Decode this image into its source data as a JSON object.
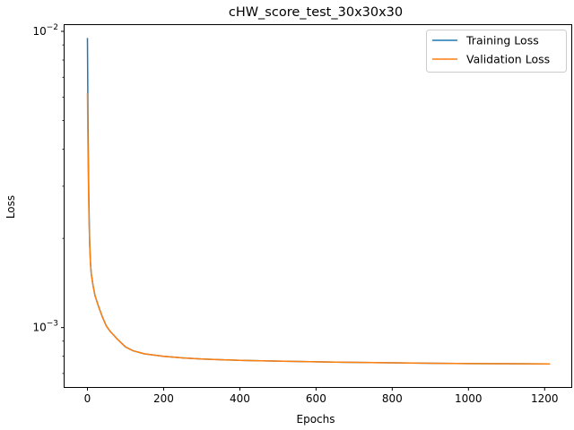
{
  "chart_data": {
    "type": "line",
    "title": "cHW_score_test_30x30x30",
    "xlabel": "Epochs",
    "ylabel": "Loss",
    "yscale": "log",
    "xlim": [
      -60,
      1270
    ],
    "ylim": [
      0.00063,
      0.0105
    ],
    "xticks": [
      0,
      200,
      400,
      600,
      800,
      1000,
      1200
    ],
    "xtick_labels": [
      "0",
      "200",
      "400",
      "600",
      "800",
      "1000",
      "1200"
    ],
    "yticks_major": [
      0.001,
      0.01
    ],
    "ytick_labels": [
      {
        "base": "10",
        "exp": "−3"
      },
      {
        "base": "10",
        "exp": "−2"
      }
    ],
    "yticks_minor": [
      0.0007,
      0.0008,
      0.0009,
      0.002,
      0.003,
      0.004,
      0.005,
      0.006,
      0.007,
      0.008,
      0.009
    ],
    "grid": false,
    "legend_position": "top-right",
    "series": [
      {
        "name": "Training Loss",
        "color": "#1f77b4",
        "x": [
          0,
          1,
          2,
          3,
          4,
          5,
          6,
          8,
          10,
          15,
          20,
          30,
          40,
          50,
          60,
          80,
          100,
          120,
          150,
          200,
          250,
          300,
          400,
          500,
          600,
          700,
          800,
          900,
          1000,
          1100,
          1214
        ],
        "y": [
          0.0095,
          0.0062,
          0.0042,
          0.0032,
          0.0026,
          0.0022,
          0.0019,
          0.00165,
          0.00152,
          0.00138,
          0.00128,
          0.00117,
          0.00108,
          0.00101,
          0.00097,
          0.00091,
          0.00086,
          0.000835,
          0.000815,
          0.0008,
          0.00079,
          0.000783,
          0.000775,
          0.00077,
          0.000766,
          0.000763,
          0.00076,
          0.000758,
          0.000756,
          0.000755,
          0.000754
        ]
      },
      {
        "name": "Validation Loss",
        "color": "#ff7f0e",
        "x": [
          0,
          1,
          2,
          3,
          4,
          5,
          6,
          8,
          10,
          15,
          20,
          30,
          40,
          50,
          60,
          80,
          100,
          120,
          150,
          200,
          250,
          300,
          400,
          500,
          600,
          700,
          800,
          900,
          1000,
          1100,
          1214
        ],
        "y": [
          0.0062,
          0.0046,
          0.0035,
          0.0029,
          0.0024,
          0.0021,
          0.0019,
          0.00165,
          0.00152,
          0.00138,
          0.00128,
          0.00117,
          0.00108,
          0.00101,
          0.00097,
          0.00091,
          0.00086,
          0.000835,
          0.000815,
          0.0008,
          0.00079,
          0.000783,
          0.000775,
          0.00077,
          0.000766,
          0.000763,
          0.00076,
          0.000758,
          0.000756,
          0.000755,
          0.000754
        ]
      }
    ]
  }
}
